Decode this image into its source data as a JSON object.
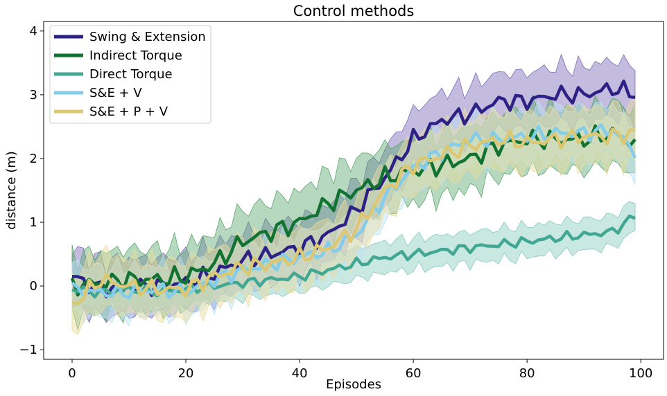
{
  "chart_data": {
    "type": "line",
    "title": "Control methods",
    "xlabel": "Episodes",
    "ylabel": "distance (m)",
    "xlim": [
      -5,
      104
    ],
    "ylim": [
      -1.15,
      4.15
    ],
    "xticks": [
      0,
      20,
      40,
      60,
      80,
      100
    ],
    "yticks": [
      -1,
      0,
      1,
      2,
      3,
      4
    ],
    "ytick_labels": [
      "−1",
      "0",
      "1",
      "2",
      "3",
      "4"
    ],
    "grid": false,
    "legend_position": "upper-left",
    "series": [
      {
        "name": "Swing & Extension",
        "color": "#2e2185",
        "band_color": "#7b6bb5",
        "points": [
          [
            0,
            0.15
          ],
          [
            5,
            -0.05
          ],
          [
            10,
            0.0
          ],
          [
            15,
            0.0
          ],
          [
            20,
            0.05
          ],
          [
            25,
            0.2
          ],
          [
            30,
            0.4
          ],
          [
            35,
            0.5
          ],
          [
            40,
            0.6
          ],
          [
            45,
            0.8
          ],
          [
            50,
            1.2
          ],
          [
            55,
            1.7
          ],
          [
            60,
            2.3
          ],
          [
            65,
            2.6
          ],
          [
            70,
            2.7
          ],
          [
            75,
            2.9
          ],
          [
            80,
            2.9
          ],
          [
            85,
            3.0
          ],
          [
            90,
            3.0
          ],
          [
            95,
            3.1
          ],
          [
            99,
            3.02
          ]
        ],
        "spread": 0.45
      },
      {
        "name": "Indirect Torque",
        "color": "#127232",
        "band_color": "#5ca86e",
        "points": [
          [
            0,
            0.0
          ],
          [
            5,
            0.05
          ],
          [
            10,
            0.1
          ],
          [
            15,
            0.1
          ],
          [
            20,
            0.15
          ],
          [
            25,
            0.35
          ],
          [
            30,
            0.7
          ],
          [
            35,
            0.85
          ],
          [
            40,
            1.0
          ],
          [
            45,
            1.3
          ],
          [
            50,
            1.5
          ],
          [
            55,
            1.7
          ],
          [
            60,
            1.8
          ],
          [
            65,
            1.9
          ],
          [
            70,
            2.0
          ],
          [
            75,
            2.2
          ],
          [
            80,
            2.3
          ],
          [
            85,
            2.3
          ],
          [
            90,
            2.3
          ],
          [
            95,
            2.4
          ],
          [
            99,
            2.25
          ]
        ],
        "spread": 0.5
      },
      {
        "name": "Direct Torque",
        "color": "#42a893",
        "band_color": "#86cbbd",
        "points": [
          [
            0,
            -0.05
          ],
          [
            5,
            -0.1
          ],
          [
            10,
            -0.05
          ],
          [
            15,
            -0.1
          ],
          [
            20,
            -0.05
          ],
          [
            25,
            0.0
          ],
          [
            30,
            0.05
          ],
          [
            35,
            0.1
          ],
          [
            40,
            0.15
          ],
          [
            45,
            0.25
          ],
          [
            50,
            0.35
          ],
          [
            55,
            0.45
          ],
          [
            60,
            0.5
          ],
          [
            65,
            0.55
          ],
          [
            70,
            0.6
          ],
          [
            75,
            0.65
          ],
          [
            80,
            0.7
          ],
          [
            85,
            0.75
          ],
          [
            90,
            0.8
          ],
          [
            95,
            0.85
          ],
          [
            99,
            1.1
          ]
        ],
        "spread": 0.25
      },
      {
        "name": "S&E + V",
        "color": "#83cdea",
        "band_color": "#bde3f3",
        "points": [
          [
            0,
            -0.05
          ],
          [
            5,
            -0.1
          ],
          [
            10,
            -0.1
          ],
          [
            15,
            -0.05
          ],
          [
            20,
            -0.1
          ],
          [
            25,
            0.1
          ],
          [
            30,
            0.25
          ],
          [
            35,
            0.35
          ],
          [
            40,
            0.45
          ],
          [
            45,
            0.55
          ],
          [
            50,
            0.8
          ],
          [
            55,
            1.4
          ],
          [
            60,
            1.85
          ],
          [
            65,
            2.1
          ],
          [
            70,
            2.3
          ],
          [
            75,
            2.3
          ],
          [
            80,
            2.35
          ],
          [
            85,
            2.4
          ],
          [
            90,
            2.4
          ],
          [
            95,
            2.45
          ],
          [
            99,
            2.12
          ]
        ],
        "spread": 0.4
      },
      {
        "name": "S&E + P + V",
        "color": "#dcc872",
        "band_color": "#eadc9e",
        "points": [
          [
            0,
            -0.3
          ],
          [
            5,
            0.1
          ],
          [
            10,
            0.0
          ],
          [
            15,
            -0.05
          ],
          [
            20,
            -0.05
          ],
          [
            25,
            0.15
          ],
          [
            30,
            0.3
          ],
          [
            35,
            0.35
          ],
          [
            40,
            0.45
          ],
          [
            45,
            0.6
          ],
          [
            50,
            0.9
          ],
          [
            55,
            1.5
          ],
          [
            60,
            1.9
          ],
          [
            65,
            2.05
          ],
          [
            70,
            2.2
          ],
          [
            75,
            2.3
          ],
          [
            80,
            2.25
          ],
          [
            85,
            2.3
          ],
          [
            90,
            2.35
          ],
          [
            95,
            2.35
          ],
          [
            99,
            2.4
          ]
        ],
        "spread": 0.45
      }
    ]
  }
}
